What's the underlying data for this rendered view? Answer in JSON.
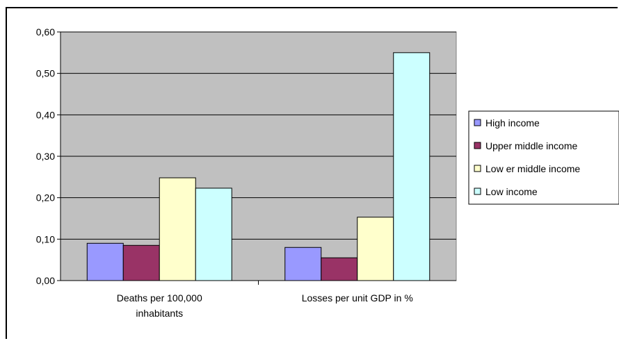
{
  "chart_data": {
    "type": "bar",
    "categories": [
      "Deaths per 100,000\ninhabitants",
      "Losses per unit GDP in %"
    ],
    "series": [
      {
        "name": "High income",
        "color": "#9999ff",
        "values": [
          0.09,
          0.08
        ]
      },
      {
        "name": "Upper middle income",
        "color": "#993366",
        "values": [
          0.085,
          0.055
        ]
      },
      {
        "name": "Low er middle income",
        "color": "#ffffcc",
        "values": [
          0.248,
          0.153
        ]
      },
      {
        "name": "Low  income",
        "color": "#ccffff",
        "values": [
          0.223,
          0.55
        ]
      }
    ],
    "ylim": [
      0,
      0.6
    ],
    "yticks": [
      "0,00",
      "0,10",
      "0,20",
      "0,30",
      "0,40",
      "0,50",
      "0,60"
    ],
    "grid": true,
    "plot_background": "#c0c0c0",
    "legend_placement": "right",
    "title": "",
    "xlabel": "",
    "ylabel": ""
  }
}
